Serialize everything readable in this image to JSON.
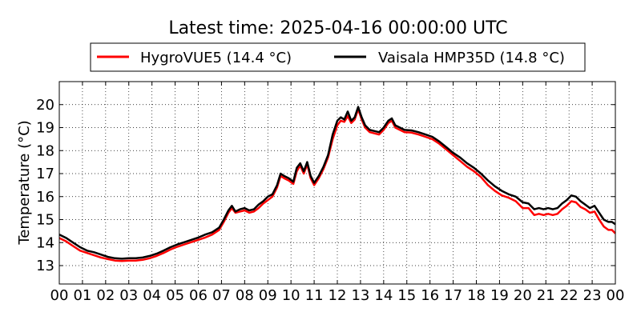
{
  "chart_data": {
    "type": "line",
    "title": "Latest time: 2025-04-16 00:00:00 UTC",
    "xlabel": "",
    "ylabel": "Temperature (°C)",
    "xlim": [
      0,
      24
    ],
    "ylim": [
      12.2,
      21.0
    ],
    "grid": true,
    "legend_position": "top",
    "x_tick_labels": [
      "00",
      "01",
      "02",
      "03",
      "04",
      "05",
      "06",
      "07",
      "08",
      "09",
      "10",
      "11",
      "12",
      "13",
      "14",
      "15",
      "16",
      "17",
      "18",
      "19",
      "20",
      "21",
      "22",
      "23",
      "00"
    ],
    "x_tick_values": [
      0,
      1,
      2,
      3,
      4,
      5,
      6,
      7,
      8,
      9,
      10,
      11,
      12,
      13,
      14,
      15,
      16,
      17,
      18,
      19,
      20,
      21,
      22,
      23,
      24
    ],
    "y_ticks": [
      13,
      14,
      15,
      16,
      17,
      18,
      19,
      20
    ],
    "series": [
      {
        "name": "HygroVUE5 (14.4 °C)",
        "color": "#ff0000",
        "x": [
          0,
          0.3,
          0.6,
          0.9,
          1.2,
          1.5,
          1.8,
          2.1,
          2.4,
          2.7,
          3.0,
          3.3,
          3.6,
          3.9,
          4.2,
          4.5,
          4.8,
          5.1,
          5.4,
          5.7,
          6.0,
          6.3,
          6.6,
          6.9,
          7.1,
          7.3,
          7.45,
          7.6,
          7.8,
          8.0,
          8.2,
          8.4,
          8.6,
          8.8,
          9.0,
          9.2,
          9.4,
          9.55,
          9.7,
          9.9,
          10.1,
          10.25,
          10.4,
          10.55,
          10.7,
          10.85,
          11.0,
          11.2,
          11.4,
          11.6,
          11.8,
          12.0,
          12.15,
          12.3,
          12.45,
          12.6,
          12.75,
          12.9,
          13.05,
          13.2,
          13.4,
          13.6,
          13.8,
          14.0,
          14.2,
          14.35,
          14.5,
          14.7,
          14.9,
          15.2,
          15.5,
          15.8,
          16.1,
          16.4,
          16.7,
          17.0,
          17.3,
          17.6,
          17.9,
          18.2,
          18.5,
          18.8,
          19.1,
          19.4,
          19.7,
          20.0,
          20.25,
          20.5,
          20.7,
          20.9,
          21.1,
          21.3,
          21.5,
          21.7,
          21.9,
          22.1,
          22.3,
          22.5,
          22.7,
          22.9,
          23.1,
          23.3,
          23.5,
          23.7,
          23.85,
          24.0
        ],
        "y": [
          14.2,
          14.05,
          13.85,
          13.65,
          13.55,
          13.45,
          13.35,
          13.28,
          13.22,
          13.2,
          13.22,
          13.22,
          13.25,
          13.32,
          13.42,
          13.55,
          13.7,
          13.82,
          13.92,
          14.02,
          14.12,
          14.22,
          14.35,
          14.55,
          14.9,
          15.3,
          15.5,
          15.3,
          15.35,
          15.4,
          15.3,
          15.35,
          15.5,
          15.7,
          15.85,
          16.0,
          16.4,
          16.9,
          16.8,
          16.7,
          16.55,
          17.1,
          17.35,
          17.0,
          17.4,
          16.8,
          16.5,
          16.8,
          17.2,
          17.7,
          18.5,
          19.1,
          19.3,
          19.25,
          19.5,
          19.2,
          19.35,
          19.8,
          19.35,
          19.0,
          18.8,
          18.75,
          18.7,
          18.9,
          19.2,
          19.3,
          19.0,
          18.9,
          18.8,
          18.78,
          18.7,
          18.6,
          18.5,
          18.3,
          18.05,
          17.8,
          17.55,
          17.3,
          17.1,
          16.85,
          16.5,
          16.25,
          16.05,
          15.95,
          15.8,
          15.5,
          15.5,
          15.2,
          15.25,
          15.2,
          15.25,
          15.2,
          15.25,
          15.45,
          15.6,
          15.8,
          15.75,
          15.55,
          15.45,
          15.3,
          15.35,
          15.0,
          14.7,
          14.55,
          14.55,
          14.4
        ]
      },
      {
        "name": "Vaisala HMP35D (14.8 °C)",
        "color": "#000000",
        "x": [
          0,
          0.3,
          0.6,
          0.9,
          1.2,
          1.5,
          1.8,
          2.1,
          2.4,
          2.7,
          3.0,
          3.3,
          3.6,
          3.9,
          4.2,
          4.5,
          4.8,
          5.1,
          5.4,
          5.7,
          6.0,
          6.3,
          6.6,
          6.9,
          7.1,
          7.3,
          7.45,
          7.6,
          7.8,
          8.0,
          8.2,
          8.4,
          8.6,
          8.8,
          9.0,
          9.2,
          9.4,
          9.55,
          9.7,
          9.9,
          10.1,
          10.25,
          10.4,
          10.55,
          10.7,
          10.85,
          11.0,
          11.2,
          11.4,
          11.6,
          11.8,
          12.0,
          12.15,
          12.3,
          12.45,
          12.6,
          12.75,
          12.9,
          13.05,
          13.2,
          13.4,
          13.6,
          13.8,
          14.0,
          14.2,
          14.35,
          14.5,
          14.7,
          14.9,
          15.2,
          15.5,
          15.8,
          16.1,
          16.4,
          16.7,
          17.0,
          17.3,
          17.6,
          17.9,
          18.2,
          18.5,
          18.8,
          19.1,
          19.4,
          19.7,
          20.0,
          20.25,
          20.5,
          20.7,
          20.9,
          21.1,
          21.3,
          21.5,
          21.7,
          21.9,
          22.1,
          22.3,
          22.5,
          22.7,
          22.9,
          23.1,
          23.3,
          23.5,
          23.7,
          23.85,
          24.0
        ],
        "y": [
          14.35,
          14.2,
          14.0,
          13.8,
          13.65,
          13.58,
          13.48,
          13.38,
          13.32,
          13.3,
          13.32,
          13.32,
          13.35,
          13.42,
          13.52,
          13.65,
          13.8,
          13.92,
          14.02,
          14.12,
          14.22,
          14.35,
          14.45,
          14.65,
          15.0,
          15.4,
          15.6,
          15.35,
          15.45,
          15.5,
          15.4,
          15.45,
          15.65,
          15.8,
          16.0,
          16.1,
          16.5,
          17.0,
          16.9,
          16.8,
          16.65,
          17.25,
          17.45,
          17.1,
          17.5,
          16.9,
          16.6,
          16.9,
          17.3,
          17.8,
          18.7,
          19.3,
          19.45,
          19.35,
          19.7,
          19.3,
          19.45,
          19.9,
          19.45,
          19.1,
          18.9,
          18.85,
          18.8,
          19.0,
          19.3,
          19.4,
          19.1,
          19.0,
          18.9,
          18.88,
          18.8,
          18.7,
          18.6,
          18.4,
          18.15,
          17.9,
          17.7,
          17.45,
          17.25,
          17.0,
          16.7,
          16.45,
          16.25,
          16.1,
          16.0,
          15.75,
          15.7,
          15.45,
          15.5,
          15.45,
          15.5,
          15.45,
          15.5,
          15.7,
          15.85,
          16.05,
          16.0,
          15.8,
          15.65,
          15.5,
          15.6,
          15.3,
          15.0,
          14.9,
          14.9,
          14.8
        ]
      }
    ]
  }
}
